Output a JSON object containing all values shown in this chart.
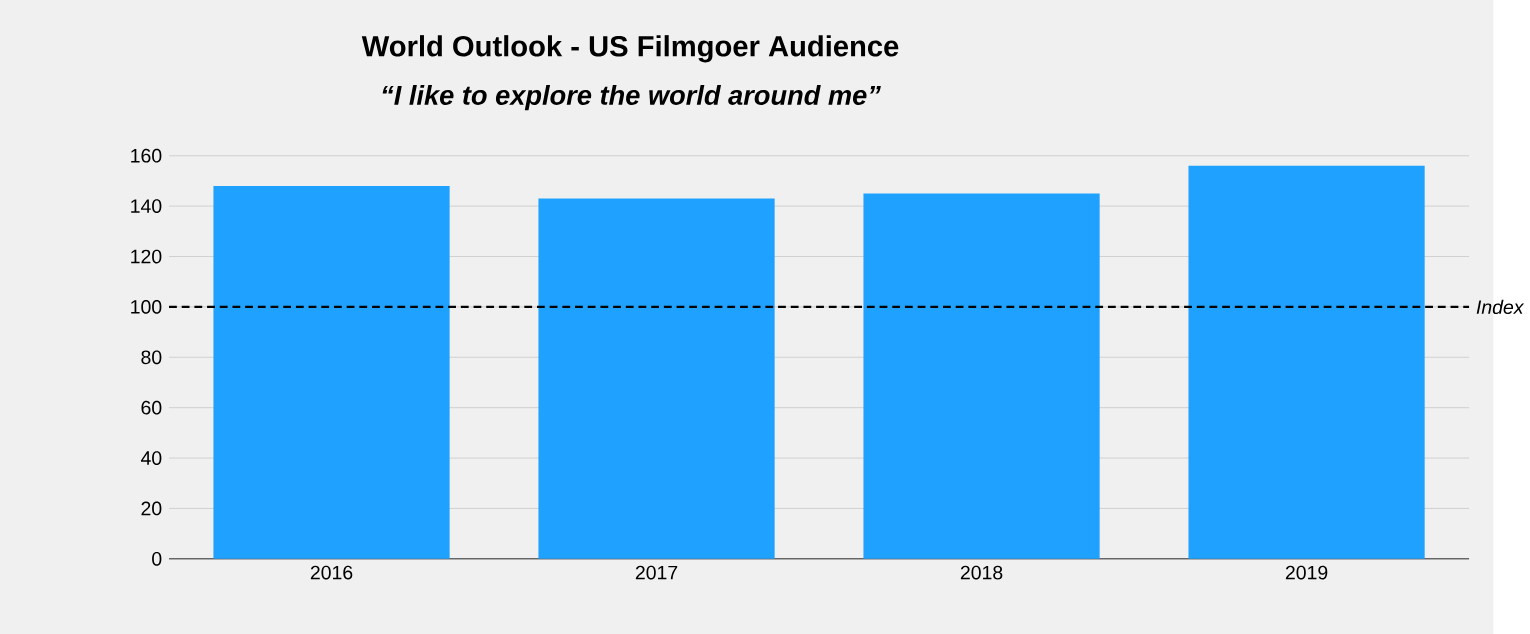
{
  "chart_data": {
    "type": "bar",
    "title": "World Outlook - US Filmgoer Audience",
    "subtitle": "“I like to explore the world around me”",
    "categories": [
      "2016",
      "2017",
      "2018",
      "2019"
    ],
    "values": [
      148,
      143,
      145,
      156
    ],
    "color": "#1ea1ff",
    "ylim": [
      0,
      160
    ],
    "yticks": [
      0,
      20,
      40,
      60,
      80,
      100,
      120,
      140,
      160
    ],
    "grid": "y",
    "ref_lines": [
      {
        "axis": "y",
        "value": 100,
        "label": "Index",
        "color": "#000000",
        "line_style": "dashed"
      }
    ]
  }
}
